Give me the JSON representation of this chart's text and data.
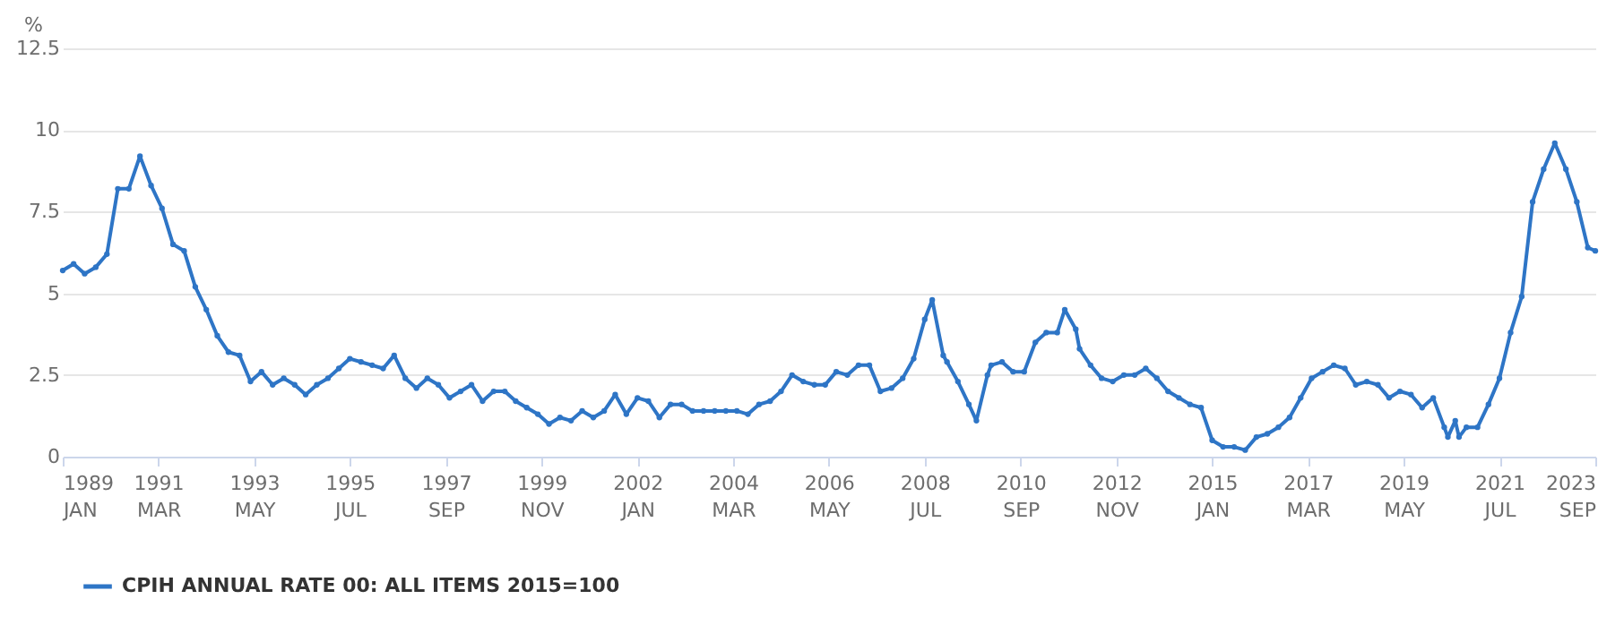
{
  "chart_data": {
    "type": "line",
    "ylabel": "%",
    "legend": "bottom",
    "grid": "y",
    "marker": "circle",
    "line_style": "solid",
    "x": [
      "1989-01",
      "1989-04",
      "1989-07",
      "1989-10",
      "1990-01",
      "1990-04",
      "1990-07",
      "1990-10",
      "1991-01",
      "1991-04",
      "1991-07",
      "1991-10",
      "1992-01",
      "1992-04",
      "1992-07",
      "1992-10",
      "1993-01",
      "1993-04",
      "1993-07",
      "1993-10",
      "1994-01",
      "1994-04",
      "1994-07",
      "1994-10",
      "1995-01",
      "1995-04",
      "1995-07",
      "1995-10",
      "1996-01",
      "1996-04",
      "1996-07",
      "1996-10",
      "1997-01",
      "1997-04",
      "1997-07",
      "1997-10",
      "1998-01",
      "1998-04",
      "1998-07",
      "1998-10",
      "1999-01",
      "1999-04",
      "1999-07",
      "1999-10",
      "2000-01",
      "2000-04",
      "2000-07",
      "2000-10",
      "2001-01",
      "2001-04",
      "2001-07",
      "2001-10",
      "2002-01",
      "2002-04",
      "2002-07",
      "2002-10",
      "2003-01",
      "2003-04",
      "2003-07",
      "2003-10",
      "2004-01",
      "2004-04",
      "2004-07",
      "2004-10",
      "2005-01",
      "2005-04",
      "2005-07",
      "2005-10",
      "2006-01",
      "2006-04",
      "2006-07",
      "2006-10",
      "2007-01",
      "2007-04",
      "2007-07",
      "2007-10",
      "2008-01",
      "2008-04",
      "2008-07",
      "2008-09",
      "2008-12",
      "2009-01",
      "2009-04",
      "2009-07",
      "2009-09",
      "2009-12",
      "2010-01",
      "2010-04",
      "2010-07",
      "2010-10",
      "2011-01",
      "2011-04",
      "2011-07",
      "2011-09",
      "2011-12",
      "2012-01",
      "2012-04",
      "2012-07",
      "2012-10",
      "2013-01",
      "2013-04",
      "2013-07",
      "2013-10",
      "2014-01",
      "2014-04",
      "2014-07",
      "2014-10",
      "2015-01",
      "2015-04",
      "2015-07",
      "2015-10",
      "2016-01",
      "2016-04",
      "2016-07",
      "2016-10",
      "2017-01",
      "2017-04",
      "2017-07",
      "2017-10",
      "2018-01",
      "2018-04",
      "2018-07",
      "2018-10",
      "2019-01",
      "2019-04",
      "2019-07",
      "2019-10",
      "2020-01",
      "2020-04",
      "2020-05",
      "2020-07",
      "2020-08",
      "2020-10",
      "2021-01",
      "2021-04",
      "2021-07",
      "2021-10",
      "2022-01",
      "2022-04",
      "2022-07",
      "2022-10",
      "2023-01",
      "2023-04",
      "2023-07",
      "2023-09"
    ],
    "series": [
      {
        "name": "CPIH ANNUAL RATE 00: ALL ITEMS 2015=100",
        "color": "#2e75c6",
        "values": [
          5.7,
          5.9,
          5.6,
          5.8,
          6.2,
          8.2,
          8.2,
          9.2,
          8.3,
          7.6,
          6.5,
          6.3,
          5.2,
          4.5,
          3.7,
          3.2,
          3.1,
          2.3,
          2.6,
          2.2,
          2.4,
          2.2,
          1.9,
          2.2,
          2.4,
          2.7,
          3.0,
          2.9,
          2.8,
          2.7,
          3.1,
          2.4,
          2.1,
          2.4,
          2.2,
          1.8,
          2.0,
          2.2,
          1.7,
          2.0,
          2.0,
          1.7,
          1.5,
          1.3,
          1.0,
          1.2,
          1.1,
          1.4,
          1.2,
          1.4,
          1.9,
          1.3,
          1.8,
          1.7,
          1.2,
          1.6,
          1.6,
          1.4,
          1.4,
          1.4,
          1.4,
          1.4,
          1.3,
          1.6,
          1.7,
          2.0,
          2.5,
          2.3,
          2.2,
          2.2,
          2.6,
          2.5,
          2.8,
          2.8,
          2.0,
          2.1,
          2.4,
          3.0,
          4.2,
          4.8,
          3.1,
          2.9,
          2.3,
          1.6,
          1.1,
          2.5,
          2.8,
          2.9,
          2.6,
          2.6,
          3.5,
          3.8,
          3.8,
          4.5,
          3.9,
          3.3,
          2.8,
          2.4,
          2.3,
          2.5,
          2.5,
          2.7,
          2.4,
          2.0,
          1.8,
          1.6,
          1.5,
          0.5,
          0.3,
          0.3,
          0.2,
          0.6,
          0.7,
          0.9,
          1.2,
          1.8,
          2.4,
          2.6,
          2.8,
          2.7,
          2.2,
          2.3,
          2.2,
          1.8,
          2.0,
          1.9,
          1.5,
          1.8,
          0.9,
          0.6,
          1.1,
          0.6,
          0.9,
          0.9,
          1.6,
          2.4,
          3.8,
          4.9,
          7.8,
          8.8,
          9.6,
          8.8,
          7.8,
          6.4,
          6.3
        ]
      }
    ],
    "xlim": [
      "1989-01",
      "2023-09"
    ],
    "xticks": [
      {
        "value": "1989-01",
        "label": "1989\nJAN"
      },
      {
        "value": "1991-03",
        "label": "1991\nMAR"
      },
      {
        "value": "1993-05",
        "label": "1993\nMAY"
      },
      {
        "value": "1995-07",
        "label": "1995\nJUL"
      },
      {
        "value": "1997-09",
        "label": "1997\nSEP"
      },
      {
        "value": "1999-11",
        "label": "1999\nNOV"
      },
      {
        "value": "2002-01",
        "label": "2002\nJAN"
      },
      {
        "value": "2004-03",
        "label": "2004\nMAR"
      },
      {
        "value": "2006-05",
        "label": "2006\nMAY"
      },
      {
        "value": "2008-07",
        "label": "2008\nJUL"
      },
      {
        "value": "2010-09",
        "label": "2010\nSEP"
      },
      {
        "value": "2012-11",
        "label": "2012\nNOV"
      },
      {
        "value": "2015-01",
        "label": "2015\nJAN"
      },
      {
        "value": "2017-03",
        "label": "2017\nMAR"
      },
      {
        "value": "2019-05",
        "label": "2019\nMAY"
      },
      {
        "value": "2021-07",
        "label": "2021\nJUL"
      },
      {
        "value": "2023-09",
        "label": "2023\nSEP"
      }
    ],
    "ylim": [
      0,
      12.5
    ],
    "yticks": [
      0,
      2.5,
      5,
      7.5,
      10,
      12.5
    ]
  }
}
